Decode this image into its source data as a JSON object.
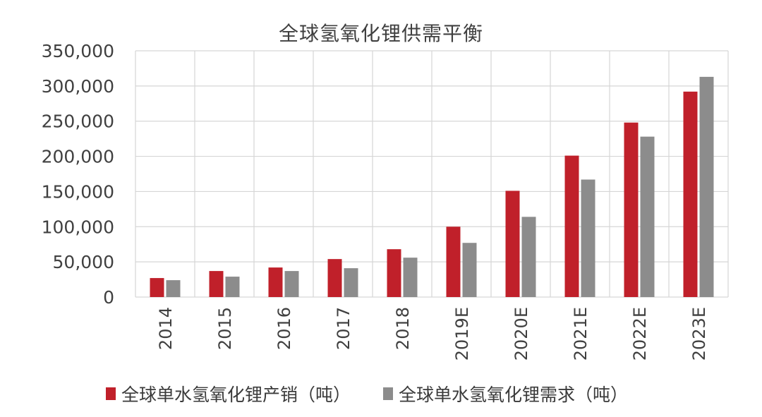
{
  "chart_data": {
    "type": "bar",
    "title": "全球氢氧化锂供需平衡",
    "xlabel": "",
    "ylabel": "",
    "categories": [
      "2014",
      "2015",
      "2016",
      "2017",
      "2018",
      "2019E",
      "2020E",
      "2021E",
      "2022E",
      "2023E"
    ],
    "series": [
      {
        "name": "全球单水氢氧化锂产销（吨）",
        "color": "#c0202a",
        "values": [
          27000,
          37000,
          42000,
          54000,
          68000,
          100000,
          151000,
          201000,
          248000,
          292000
        ]
      },
      {
        "name": "全球单水氢氧化锂需求（吨）",
        "color": "#8c8c8c",
        "values": [
          24000,
          29000,
          37000,
          41000,
          56000,
          77000,
          114000,
          167000,
          228000,
          313000
        ]
      }
    ],
    "ylim": [
      0,
      350000
    ],
    "yticks": [
      "0",
      "50,000",
      "100,000",
      "150,000",
      "200,000",
      "250,000",
      "300,000",
      "350,000"
    ],
    "ytick_values": [
      0,
      50000,
      100000,
      150000,
      200000,
      250000,
      300000,
      350000
    ],
    "grid": true,
    "legend_position": "bottom"
  }
}
